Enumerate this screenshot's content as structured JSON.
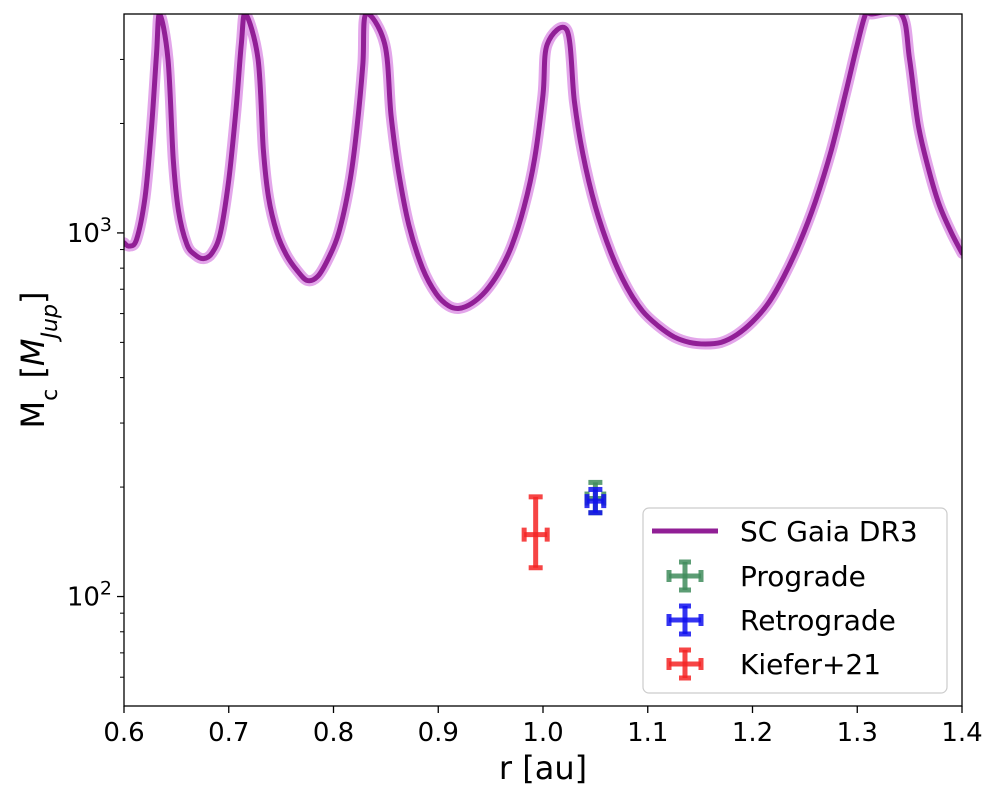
{
  "chart_data": {
    "type": "line",
    "xlabel": "r [au]",
    "ylabel": {
      "main": "M",
      "sub": "c",
      "unit_main": "M",
      "unit_sub": "Jup"
    },
    "xlim": [
      0.6,
      1.4
    ],
    "ylim": [
      50,
      4000
    ],
    "yscale": "log",
    "grid": false,
    "legend_position": "lower-right",
    "x_ticks": [
      0.6,
      0.7,
      0.8,
      0.9,
      1.0,
      1.1,
      1.2,
      1.3,
      1.4
    ],
    "x_tick_labels": [
      "0.6",
      "0.7",
      "0.8",
      "0.9",
      "1.0",
      "1.1",
      "1.2",
      "1.3",
      "1.4"
    ],
    "y_major_ticks": [
      100,
      1000
    ],
    "y_major_tick_labels": [
      {
        "base": "10",
        "exp": "2"
      },
      {
        "base": "10",
        "exp": "3"
      }
    ],
    "y_minor_ticks": [
      60,
      70,
      80,
      90,
      200,
      300,
      400,
      500,
      600,
      700,
      800,
      900,
      2000,
      3000
    ],
    "series": [
      {
        "name": "SC Gaia DR3",
        "kind": "line",
        "color": "#911f96",
        "band_color": "#e3a6ea",
        "x": [
          0.6,
          0.605,
          0.612,
          0.62,
          0.626,
          0.631,
          0.634,
          0.642,
          0.647,
          0.652,
          0.66,
          0.668,
          0.676,
          0.684,
          0.692,
          0.7,
          0.707,
          0.712,
          0.716,
          0.728,
          0.733,
          0.738,
          0.746,
          0.755,
          0.765,
          0.775,
          0.785,
          0.795,
          0.805,
          0.815,
          0.822,
          0.828,
          0.831,
          0.849,
          0.855,
          0.862,
          0.872,
          0.885,
          0.898,
          0.91,
          0.92,
          0.932,
          0.945,
          0.958,
          0.97,
          0.982,
          0.992,
          1.0,
          1.004,
          1.023,
          1.03,
          1.038,
          1.05,
          1.065,
          1.08,
          1.095,
          1.11,
          1.125,
          1.14,
          1.155,
          1.17,
          1.185,
          1.2,
          1.215,
          1.23,
          1.245,
          1.26,
          1.275,
          1.29,
          1.3,
          1.308,
          1.314,
          1.342,
          1.35,
          1.358,
          1.368,
          1.378,
          1.39,
          1.4
        ],
        "y": [
          940,
          920,
          960,
          1250,
          1900,
          3100,
          4000,
          3000,
          1600,
          1150,
          930,
          870,
          850,
          880,
          1000,
          1400,
          2200,
          3300,
          4000,
          3000,
          1700,
          1250,
          1000,
          870,
          790,
          740,
          760,
          850,
          1000,
          1350,
          1900,
          2900,
          4000,
          3300,
          2100,
          1480,
          1050,
          800,
          680,
          630,
          620,
          640,
          690,
          780,
          920,
          1180,
          1600,
          2400,
          3300,
          3600,
          2300,
          1650,
          1180,
          880,
          710,
          610,
          555,
          518,
          500,
          495,
          500,
          525,
          570,
          640,
          760,
          940,
          1220,
          1680,
          2500,
          3300,
          4000,
          4000,
          4000,
          3000,
          2000,
          1500,
          1200,
          1000,
          880
        ]
      },
      {
        "name": "Prograde",
        "kind": "errorbar",
        "color": "#3f8c5c",
        "x": 1.05,
        "y": 186,
        "xerr": 0.008,
        "yerr_low": 16,
        "yerr_high": 20
      },
      {
        "name": "Retrograde",
        "kind": "errorbar",
        "color": "#1010ee",
        "x": 1.05,
        "y": 183,
        "xerr": 0.008,
        "yerr_low": 13,
        "yerr_high": 14
      },
      {
        "name": "Kiefer+21",
        "kind": "errorbar",
        "color": "#f42525",
        "x": 0.993,
        "y": 148,
        "xerr": 0.011,
        "yerr_low": 28,
        "yerr_high": 40
      }
    ]
  }
}
